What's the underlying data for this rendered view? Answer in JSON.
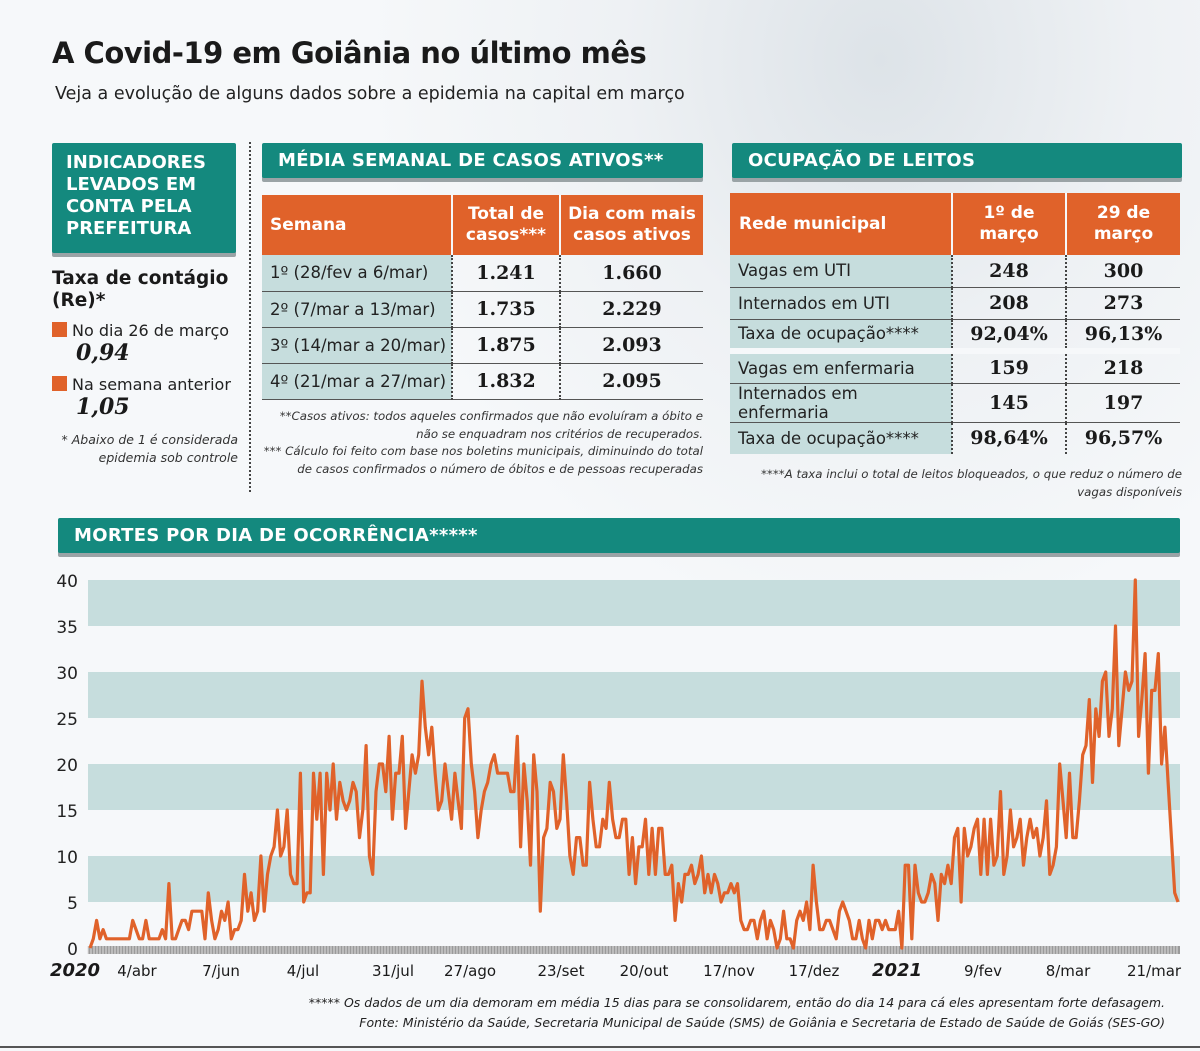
{
  "title": "A Covid-19 em Goiânia no último mês",
  "subtitle": "Veja a evolução de alguns dados sobre a epidemia na capital em março",
  "indicators": {
    "box_title": "INDICADORES LEVADOS EM CONTA PELA PREFEITURA",
    "taxa_title": "Taxa de contágio (Re)*",
    "items": [
      {
        "label": "No dia 26 de março",
        "value": "0,94"
      },
      {
        "label": "Na semana anterior",
        "value": "1,05"
      }
    ],
    "note": "* Abaixo de 1 é considerada epidemia sob controle"
  },
  "cases": {
    "header": "MÉDIA SEMANAL DE CASOS ATIVOS**",
    "columns": [
      "Semana",
      "Total de casos***",
      "Dia com mais casos ativos"
    ],
    "rows": [
      [
        "1º (28/fev a 6/mar)",
        "1.241",
        "1.660"
      ],
      [
        "2º (7/mar a 13/mar)",
        "1.735",
        "2.229"
      ],
      [
        "3º (14/mar a 20/mar)",
        "1.875",
        "2.093"
      ],
      [
        "4º (21/mar a 27/mar)",
        "1.832",
        "2.095"
      ]
    ],
    "note1": "**Casos ativos: todos aqueles confirmados que não evoluíram a óbito e não se enquadram nos critérios de recuperados.",
    "note2": "*** Cálculo foi feito com base nos boletins municipais, diminuindo do total de casos confirmados o número de óbitos e de pessoas recuperadas"
  },
  "beds": {
    "header": "OCUPAÇÃO DE LEITOS",
    "columns": [
      "Rede municipal",
      "1º de março",
      "29 de março"
    ],
    "rows": [
      [
        "Vagas em UTI",
        "248",
        "300"
      ],
      [
        "Internados em UTI",
        "208",
        "273"
      ],
      [
        "Taxa de ocupação****",
        "92,04%",
        "96,13%"
      ],
      [
        "Vagas em enfermaria",
        "159",
        "218"
      ],
      [
        "Internados em enfermaria",
        "145",
        "197"
      ],
      [
        "Taxa de ocupação****",
        "98,64%",
        "96,57%"
      ]
    ],
    "note": "****A taxa inclui o total de leitos bloqueados, o que reduz o número de vagas disponíveis"
  },
  "deaths_header": "MORTES POR DIA DE OCORRÊNCIA*****",
  "chart_data": {
    "type": "line",
    "title": "MORTES POR DIA DE OCORRÊNCIA*****",
    "xlabel": "",
    "ylabel": "",
    "ylim": [
      0,
      40
    ],
    "yticks": [
      "0",
      "5",
      "10",
      "15",
      "20",
      "25",
      "30",
      "35",
      "40"
    ],
    "xticks": [
      "2020",
      "4/abr",
      "7/jun",
      "4/jul",
      "31/jul",
      "27/ago",
      "23/set",
      "20/out",
      "17/nov",
      "17/dez",
      "2021",
      "9/fev",
      "8/mar",
      "21/mar"
    ],
    "grid": "alternating horizontal bands",
    "color": "#e0622a",
    "band_color": "#c6dddd",
    "values": [
      0,
      1,
      3,
      1,
      2,
      1,
      1,
      1,
      1,
      1,
      1,
      1,
      1,
      3,
      2,
      1,
      1,
      3,
      1,
      1,
      1,
      1,
      2,
      1,
      7,
      1,
      1,
      2,
      3,
      3,
      2,
      4,
      4,
      4,
      4,
      1,
      6,
      3,
      1,
      2,
      4,
      3,
      5,
      1,
      2,
      2,
      3,
      8,
      4,
      6,
      3,
      4,
      10,
      4,
      8,
      10,
      11,
      15,
      10,
      11,
      15,
      8,
      7,
      7,
      19,
      5,
      6,
      6,
      19,
      14,
      19,
      8,
      19,
      15,
      20,
      14,
      18,
      16,
      15,
      16,
      18,
      17,
      12,
      15,
      22,
      10,
      8,
      17,
      20,
      20,
      17,
      23,
      14,
      19,
      19,
      23,
      13,
      17,
      21,
      19,
      21,
      29,
      24,
      21,
      24,
      19,
      15,
      16,
      20,
      17,
      14,
      19,
      16,
      13,
      25,
      26,
      20,
      17,
      12,
      15,
      17,
      18,
      20,
      21,
      19,
      19,
      19,
      19,
      17,
      17,
      23,
      11,
      20,
      16,
      9,
      21,
      17,
      4,
      12,
      13,
      18,
      17,
      13,
      14,
      21,
      16,
      10,
      8,
      12,
      12,
      9,
      9,
      18,
      14,
      11,
      11,
      14,
      13,
      18,
      14,
      12,
      12,
      14,
      14,
      8,
      12,
      7,
      11,
      11,
      14,
      8,
      13,
      8,
      13,
      13,
      8,
      8,
      9,
      3,
      7,
      5,
      8,
      8,
      9,
      7,
      8,
      10,
      6,
      8,
      6,
      8,
      7,
      5,
      6,
      6,
      7,
      6,
      7,
      3,
      2,
      2,
      3,
      3,
      1,
      3,
      4,
      1,
      3,
      2,
      0,
      1,
      4,
      1,
      1,
      0,
      3,
      4,
      3,
      5,
      2,
      9,
      5,
      2,
      2,
      3,
      3,
      2,
      1,
      4,
      5,
      4,
      3,
      1,
      1,
      3,
      1,
      0,
      3,
      1,
      3,
      3,
      2,
      3,
      2,
      2,
      2,
      4,
      0,
      9,
      9,
      1,
      9,
      6,
      5,
      5,
      6,
      8,
      7,
      3,
      8,
      7,
      9,
      7,
      12,
      13,
      5,
      13,
      10,
      11,
      13,
      14,
      8,
      14,
      8,
      14,
      9,
      10,
      17,
      8,
      10,
      15,
      11,
      12,
      14,
      9,
      12,
      14,
      12,
      13,
      10,
      12,
      16,
      8,
      9,
      11,
      20,
      16,
      12,
      19,
      12,
      12,
      16,
      21,
      22,
      27,
      18,
      26,
      23,
      29,
      30,
      23,
      26,
      35,
      22,
      26,
      30,
      28,
      29,
      40,
      23,
      27,
      32,
      19,
      28,
      28,
      32,
      20,
      24,
      18,
      12,
      6,
      5
    ]
  },
  "footnote": "***** Os dados de um dia demoram em média 15 dias para se consolidarem, então do dia 14 para cá eles apresentam forte defasagem.",
  "source": "Fonte: Ministério da Saúde, Secretaria Municipal de Saúde (SMS) de Goiânia e Secretaria de Estado de Saúde de Goiás (SES-GO)"
}
